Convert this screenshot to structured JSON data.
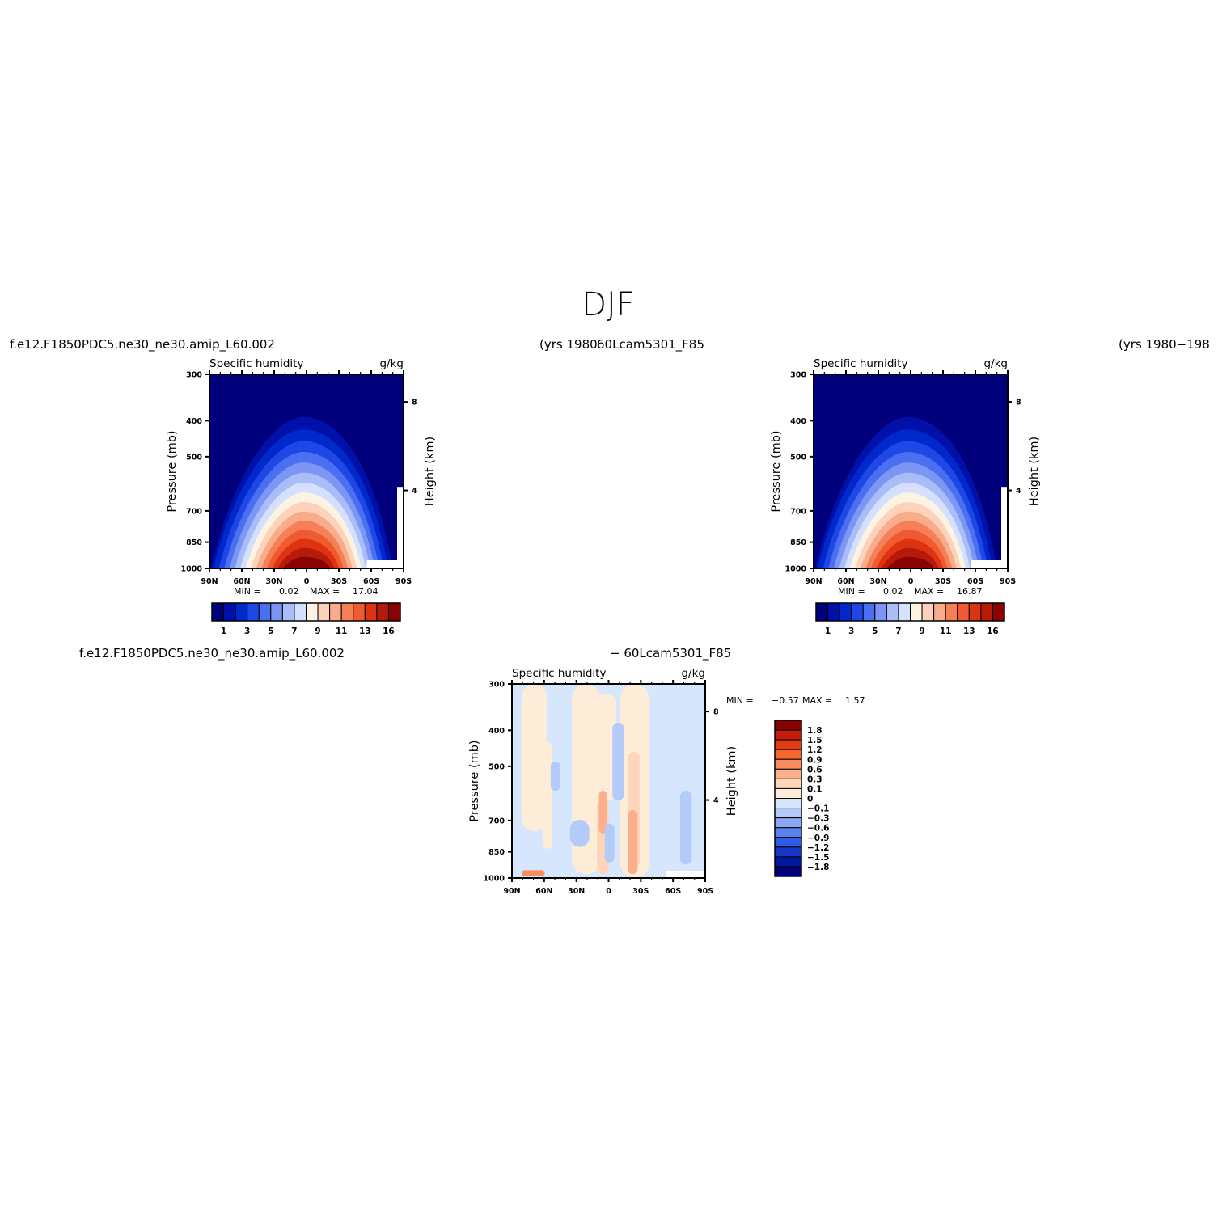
{
  "page_title": "DJF",
  "top_left_case": "f.e12.F1850PDC5.ne30_ne30.amip_L60.002",
  "top_left_years": "(yrs 1980",
  "top_right_case": "60Lcam5301_F85",
  "top_right_years": "(yrs 1980−198",
  "diff_left_case": "f.e12.F1850PDC5.ne30_ne30.amip_L60.002",
  "diff_right_case": "− 60Lcam5301_F85",
  "chart_data": [
    {
      "type": "heatmap",
      "title": "Specific humidity",
      "units": "g/kg",
      "ylabel": "Pressure (mb)",
      "ylabel_right": "Height (km)",
      "x_ticks": [
        "90N",
        "60N",
        "30N",
        "0",
        "30S",
        "60S",
        "90S"
      ],
      "y_ticks": [
        "300",
        "400",
        "500",
        "700",
        "850",
        "1000"
      ],
      "y_ticks_right": [
        "8",
        "4"
      ],
      "ylim_mb": [
        1000,
        300
      ],
      "min_label": "MIN =",
      "min_value": "0.02",
      "max_label": "MAX =",
      "max_value": "17.04",
      "colorbar_labels": [
        "1",
        "3",
        "5",
        "7",
        "9",
        "11",
        "13",
        "16"
      ],
      "colorbar_colors": [
        "#00007d",
        "#0010a9",
        "#0029cc",
        "#1f47e6",
        "#4a6ff0",
        "#7c96f4",
        "#abbdf8",
        "#d4e0fd",
        "#fdf3e3",
        "#fcd3ba",
        "#f9ac8a",
        "#f57f56",
        "#ef5a30",
        "#dd3313",
        "#b81a09",
        "#8a0303"
      ]
    },
    {
      "type": "heatmap",
      "title": "Specific humidity",
      "units": "g/kg",
      "ylabel": "Pressure (mb)",
      "ylabel_right": "Height (km)",
      "x_ticks": [
        "90N",
        "60N",
        "30N",
        "0",
        "30S",
        "60S",
        "90S"
      ],
      "y_ticks": [
        "300",
        "400",
        "500",
        "700",
        "850",
        "1000"
      ],
      "y_ticks_right": [
        "8",
        "4"
      ],
      "ylim_mb": [
        1000,
        300
      ],
      "min_label": "MIN =",
      "min_value": "0.02",
      "max_label": "MAX =",
      "max_value": "16.87",
      "colorbar_labels": [
        "1",
        "3",
        "5",
        "7",
        "9",
        "11",
        "13",
        "16"
      ],
      "colorbar_colors": [
        "#00007d",
        "#0010a9",
        "#0029cc",
        "#1f47e6",
        "#4a6ff0",
        "#7c96f4",
        "#abbdf8",
        "#d4e0fd",
        "#fdf3e3",
        "#fcd3ba",
        "#f9ac8a",
        "#f57f56",
        "#ef5a30",
        "#dd3313",
        "#b81a09",
        "#8a0303"
      ]
    },
    {
      "type": "heatmap",
      "title": "Specific humidity",
      "units": "g/kg",
      "ylabel": "Pressure (mb)",
      "ylabel_right": "Height (km)",
      "x_ticks": [
        "90N",
        "60N",
        "30N",
        "0",
        "30S",
        "60S",
        "90S"
      ],
      "y_ticks": [
        "300",
        "400",
        "500",
        "700",
        "850",
        "1000"
      ],
      "y_ticks_right": [
        "8",
        "4"
      ],
      "ylim_mb": [
        1000,
        300
      ],
      "min_label": "MIN =",
      "min_value": "−0.57",
      "max_label": "MAX =",
      "max_value": "1.57",
      "colorbar_labels": [
        "1.8",
        "1.5",
        "1.2",
        "0.9",
        "0.6",
        "0.3",
        "0.1",
        "0",
        "−0.1",
        "−0.3",
        "−0.6",
        "−0.9",
        "−1.2",
        "−1.5",
        "−1.8"
      ],
      "colorbar_colors": [
        "#8a0303",
        "#c51b0a",
        "#e33b12",
        "#f5662e",
        "#f98c5c",
        "#fbaf8a",
        "#fdd5b8",
        "#fdecd8",
        "#d6e6fc",
        "#b4cbfa",
        "#8aa8f6",
        "#5a83f0",
        "#2f5ce6",
        "#1536c8",
        "#0018a0",
        "#00007d"
      ]
    }
  ]
}
